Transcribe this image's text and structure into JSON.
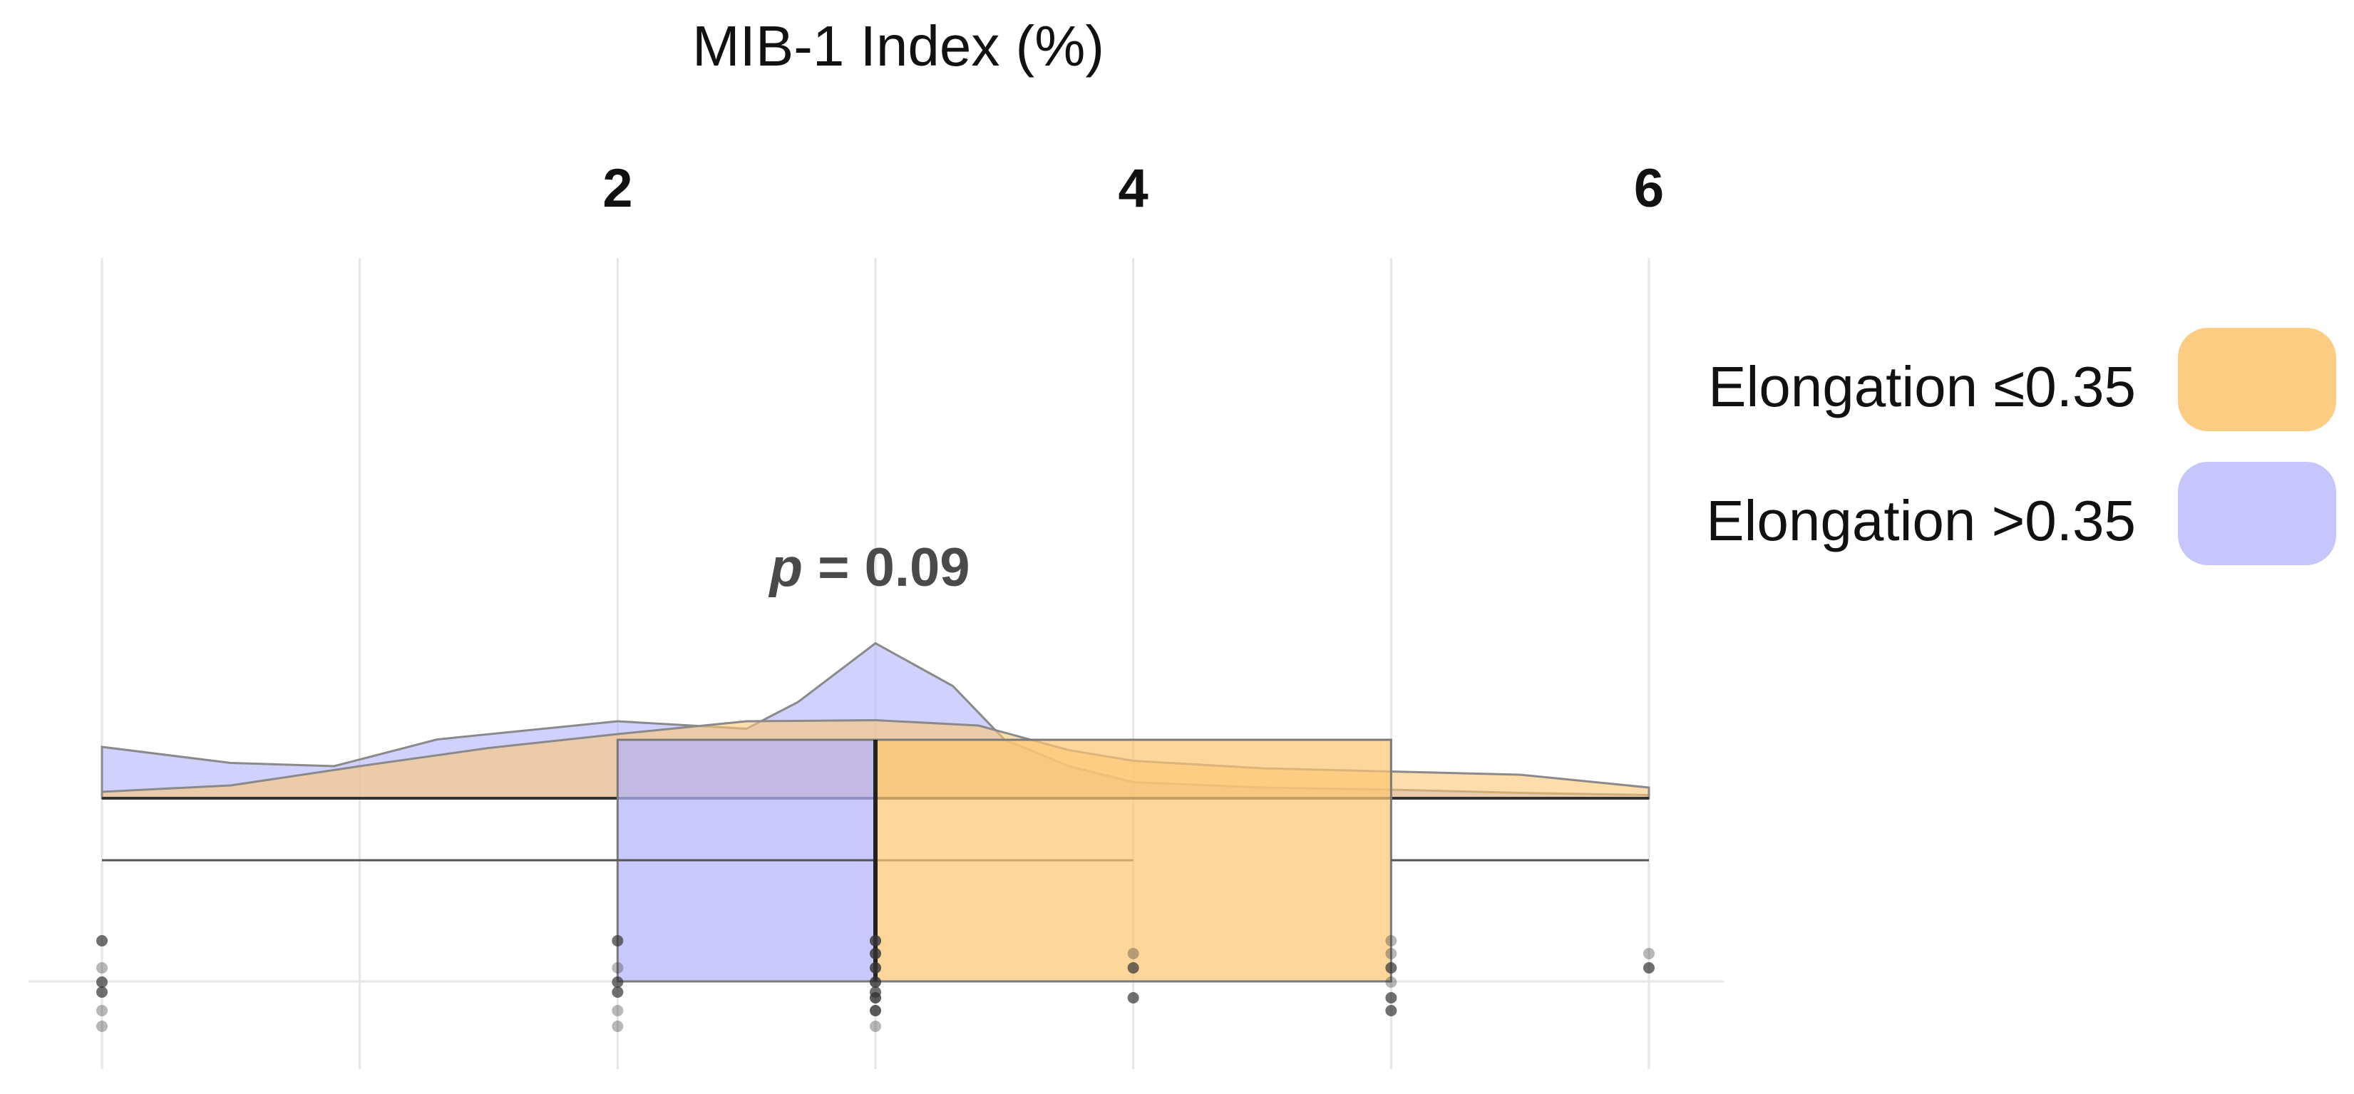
{
  "chart_data": {
    "type": "raincloud",
    "orientation": "horizontal",
    "x_axis": {
      "title": "MIB-1 Index (%)",
      "position": "top",
      "ticks": [
        2,
        4,
        6
      ],
      "tick_labels": [
        "2",
        "4",
        "6"
      ],
      "range": [
        0,
        6
      ]
    },
    "grid": true,
    "annotation": {
      "prefix": "p",
      "text": " = 0.09"
    },
    "legend": {
      "position": "right"
    },
    "series": [
      {
        "name": "Elongation ≤0.35",
        "color": "#FBC673",
        "box": {
          "min": 0,
          "q1": 3,
          "median": 3,
          "q3": 5,
          "max": 6
        },
        "density": [
          [
            0,
            0.06
          ],
          [
            0.5,
            0.12
          ],
          [
            1,
            0.3
          ],
          [
            1.5,
            0.47
          ],
          [
            2,
            0.6
          ],
          [
            2.5,
            0.72
          ],
          [
            3,
            0.73
          ],
          [
            3.4,
            0.68
          ],
          [
            3.75,
            0.45
          ],
          [
            4,
            0.35
          ],
          [
            4.5,
            0.28
          ],
          [
            5,
            0.25
          ],
          [
            5.5,
            0.22
          ],
          [
            6,
            0.1
          ]
        ],
        "points": [
          {
            "x": 3,
            "n": 6
          },
          {
            "x": 4,
            "n": 3
          },
          {
            "x": 5,
            "n": 6
          },
          {
            "x": 6,
            "n": 2
          }
        ]
      },
      {
        "name": "Elongation >0.35",
        "color": "#B3B3FB",
        "box": {
          "min": 0,
          "q1": 2,
          "median": 3,
          "q3": 3,
          "max": 4
        },
        "density": [
          [
            0,
            0.48
          ],
          [
            0.5,
            0.33
          ],
          [
            0.9,
            0.3
          ],
          [
            1.3,
            0.55
          ],
          [
            2,
            0.72
          ],
          [
            2.5,
            0.65
          ],
          [
            2.7,
            0.9
          ],
          [
            3,
            1.45
          ],
          [
            3.3,
            1.05
          ],
          [
            3.5,
            0.55
          ],
          [
            3.75,
            0.3
          ],
          [
            4,
            0.15
          ],
          [
            4.5,
            0.1
          ],
          [
            5,
            0.08
          ],
          [
            5.5,
            0.05
          ],
          [
            6,
            0.03
          ]
        ],
        "points": [
          {
            "x": 0,
            "n": 6
          },
          {
            "x": 2,
            "n": 6
          },
          {
            "x": 3,
            "n": 8
          }
        ]
      }
    ]
  }
}
